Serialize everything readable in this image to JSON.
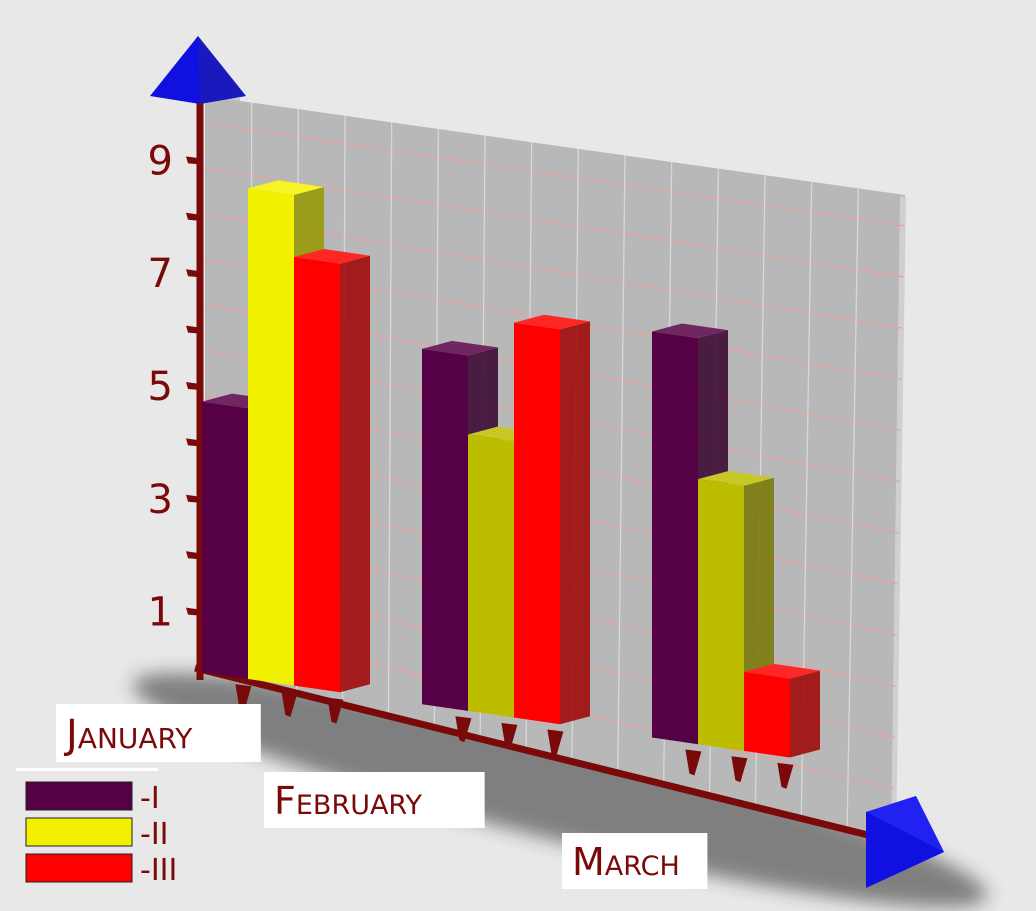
{
  "chart_data": {
    "type": "bar",
    "categories": [
      "January",
      "February",
      "March"
    ],
    "series": [
      {
        "name": "-I",
        "values": [
          4.8,
          6.3,
          7.2
        ],
        "color": "#560045"
      },
      {
        "name": "-II",
        "values": [
          8.7,
          4.9,
          4.7
        ],
        "color": "#f2f200"
      },
      {
        "name": "-III",
        "values": [
          7.6,
          7.0,
          1.4
        ],
        "color": "#ff0000"
      }
    ],
    "y_ticks": [
      1,
      3,
      5,
      7,
      9
    ],
    "ylim": [
      0,
      10
    ],
    "grid": true,
    "legend_position": "bottom-left",
    "colors": {
      "axis": "#7a0a0a",
      "arrow": "#1010e0",
      "wall": "#b8b8b8",
      "grid": "#e8a0a0"
    }
  }
}
